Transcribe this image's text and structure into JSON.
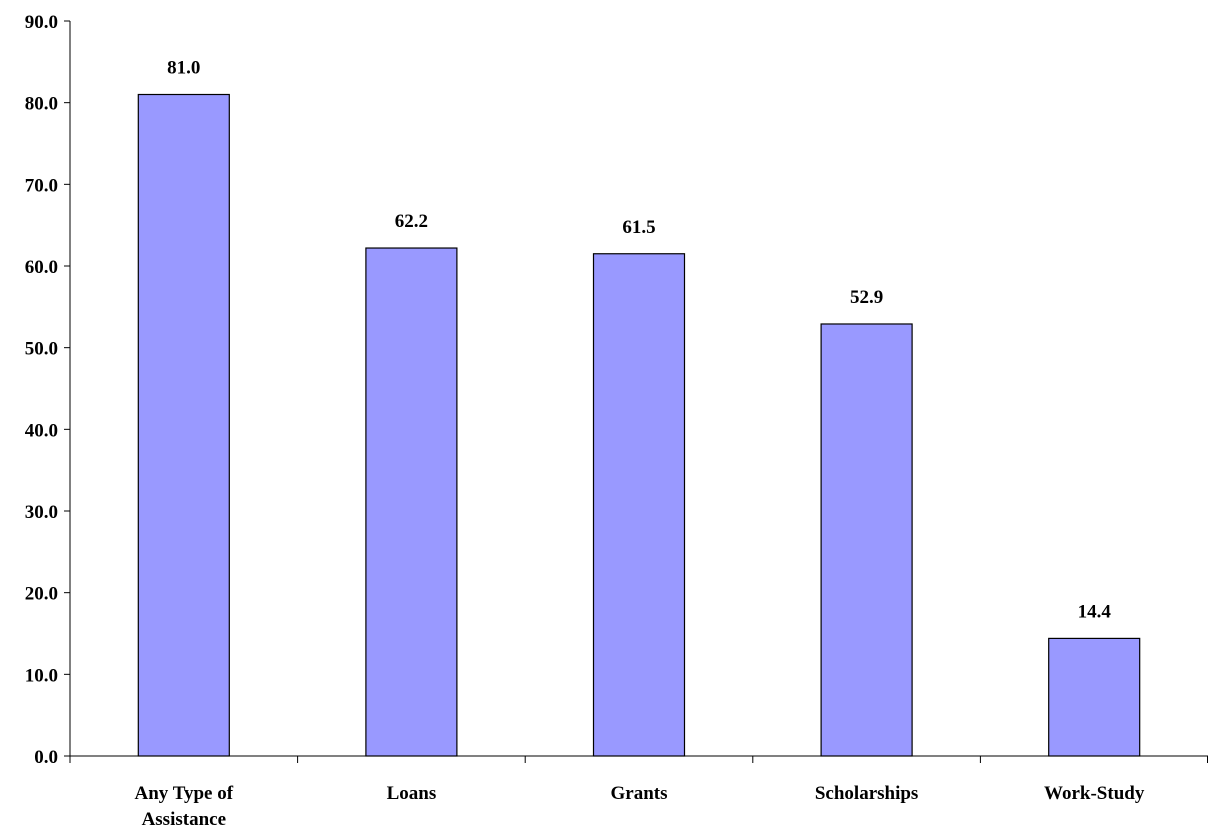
{
  "chart_data": {
    "type": "bar",
    "title": "",
    "xlabel": "",
    "ylabel": "",
    "ylim": [
      0,
      90
    ],
    "y_ticks": [
      "0.0",
      "10.0",
      "20.0",
      "30.0",
      "40.0",
      "50.0",
      "60.0",
      "70.0",
      "80.0",
      "90.0"
    ],
    "categories": [
      [
        "Any Type of",
        "Assistance"
      ],
      [
        "Loans"
      ],
      [
        "Grants"
      ],
      [
        "Scholarships"
      ],
      [
        "Work-Study"
      ]
    ],
    "values": [
      81.0,
      62.2,
      61.5,
      52.9,
      14.4
    ],
    "value_labels": [
      "81.0",
      "62.2",
      "61.5",
      "52.9",
      "14.4"
    ],
    "grid": false,
    "legend": "none",
    "colors": {
      "bar_fill": "#9999ff",
      "bar_stroke": "#000000",
      "axis": "#000000"
    }
  }
}
